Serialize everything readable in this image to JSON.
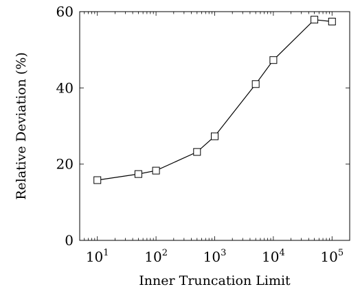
{
  "chart_data": {
    "type": "line",
    "xscale": "log",
    "xlabel": "Inner Truncation Limit",
    "ylabel": "Relative Deviation (%)",
    "xlim": [
      5,
      200000
    ],
    "ylim": [
      0,
      60
    ],
    "x_ticks": [
      {
        "value": 10,
        "base": "10",
        "exp": "1"
      },
      {
        "value": 100,
        "base": "10",
        "exp": "2"
      },
      {
        "value": 1000,
        "base": "10",
        "exp": "3"
      },
      {
        "value": 10000,
        "base": "10",
        "exp": "4"
      },
      {
        "value": 100000,
        "base": "10",
        "exp": "5"
      }
    ],
    "y_ticks": [
      "0",
      "20",
      "40",
      "60"
    ],
    "grid": false,
    "marker": "square",
    "series": [
      {
        "x": [
          10,
          50,
          100,
          500,
          1000,
          5000,
          10000,
          50000,
          100000
        ],
        "y": [
          15.8,
          17.4,
          18.3,
          23.2,
          27.3,
          41.0,
          47.3,
          57.9,
          57.4
        ]
      }
    ]
  }
}
